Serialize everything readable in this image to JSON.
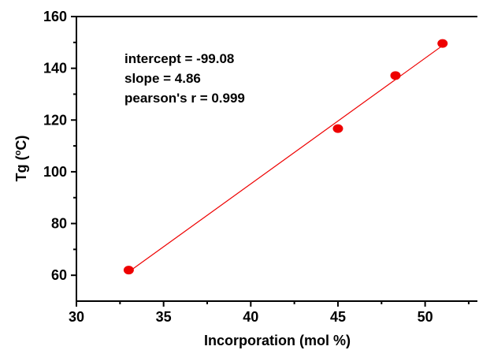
{
  "chart_data": {
    "type": "scatter",
    "xlabel": "Incorporation (mol %)",
    "ylabel": "Tg (",
    "ylabel_unit_sup": "o",
    "ylabel_unit": "C)",
    "xlim": [
      30,
      53
    ],
    "ylim": [
      50,
      160
    ],
    "x_ticks": [
      30,
      35,
      40,
      45,
      50
    ],
    "y_ticks": [
      60,
      80,
      100,
      120,
      140,
      160
    ],
    "grid": false,
    "points": [
      {
        "x": 33.0,
        "y": 62.0
      },
      {
        "x": 45.0,
        "y": 116.7
      },
      {
        "x": 48.3,
        "y": 137.2
      },
      {
        "x": 51.0,
        "y": 149.6
      }
    ],
    "fit_line": {
      "x_start": 33.0,
      "x_end": 51.0,
      "intercept": -99.08,
      "slope": 4.86
    },
    "annotations": [
      "intercept = -99.08",
      "slope = 4.86",
      "pearson's r = 0.999"
    ],
    "marker_color": "#ee0000",
    "line_color": "#ee0000"
  }
}
